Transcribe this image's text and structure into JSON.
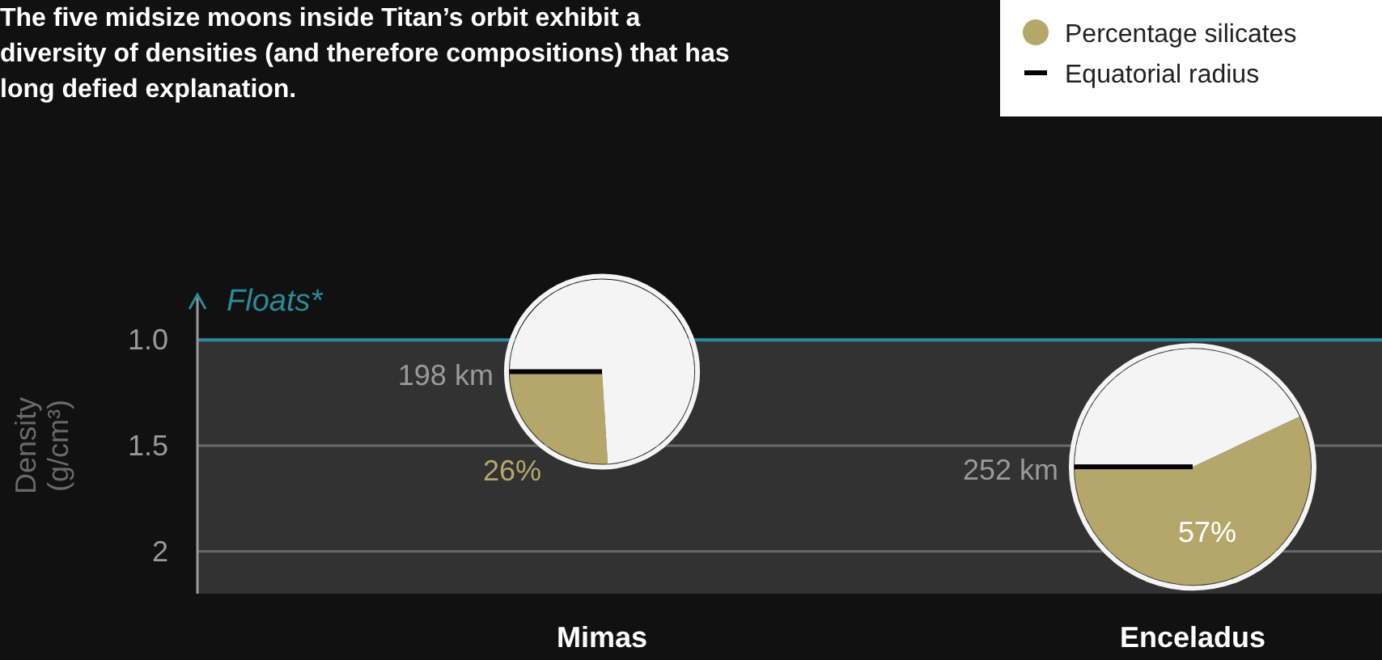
{
  "chart_data": [
    {
      "type": "bubble",
      "title": "The five midsize moons inside Titan’s orbit exhibit a diversity of densities (and therefore compositions) that has long defied explanation.",
      "ylabel": "Density (g/cm³)",
      "categories": [
        "Mimas",
        "Enceladus"
      ],
      "values": [
        1.15,
        1.6
      ],
      "sizes": [
        0.62,
        1
      ],
      "color": "#f4f4f4",
      "ylim": [
        2.2,
        0.8
      ],
      "yticks": [
        {
          "value": 1,
          "label": "1.0"
        },
        1.5,
        2
      ],
      "ref_lines": [
        {
          "axis": "y",
          "value": 1,
          "label": "Floats*",
          "color": "#2a8a9a"
        }
      ],
      "bands": [
        {
          "axis": "y",
          "from": 1,
          "to": 2.2,
          "color": "#323232"
        }
      ],
      "annotations": [
        "Equatorial radius"
      ],
      "grid": "y"
    },
    {
      "type": "pie",
      "categories": [
        "Percentage silicates",
        null
      ],
      "values": [
        26,
        74
      ],
      "colors": [
        "#b5a76a",
        "#f4f4f4"
      ],
      "value_labels": [
        "26%",
        null
      ],
      "annotations": [
        "198 km"
      ],
      "legend": "top right"
    },
    {
      "type": "pie",
      "categories": [
        null,
        null
      ],
      "values": [
        57,
        43
      ],
      "colors": [
        "#b5a76a",
        "#f4f4f4"
      ],
      "value_labels": [
        "57%",
        null
      ],
      "annotations": [
        "252 km"
      ]
    }
  ]
}
